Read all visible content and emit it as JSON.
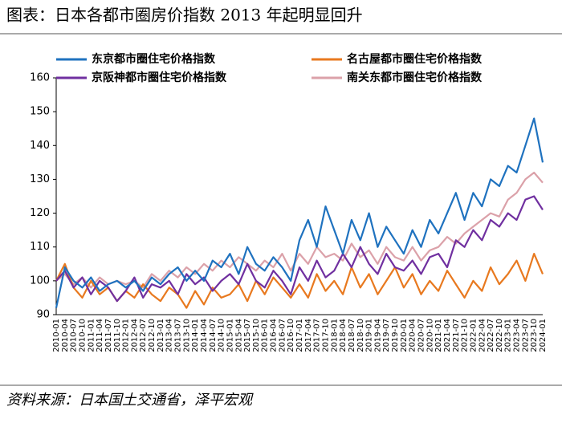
{
  "chart_data": {
    "type": "line",
    "title": "图表：日本各都市圈房价指数 2013 年起明显回升",
    "source": "资料来源：日本国土交通省，泽平宏观",
    "categories": [
      "2010-01",
      "2010-04",
      "2010-07",
      "2010-10",
      "2011-01",
      "2011-04",
      "2011-07",
      "2011-10",
      "2012-01",
      "2012-04",
      "2012-07",
      "2012-10",
      "2013-01",
      "2013-04",
      "2013-07",
      "2013-10",
      "2014-01",
      "2014-04",
      "2014-07",
      "2014-10",
      "2015-01",
      "2015-04",
      "2015-07",
      "2015-10",
      "2016-01",
      "2016-04",
      "2016-07",
      "2016-10",
      "2017-01",
      "2017-04",
      "2017-07",
      "2017-10",
      "2018-01",
      "2018-04",
      "2018-07",
      "2018-10",
      "2019-01",
      "2019-04",
      "2019-07",
      "2019-10",
      "2020-01",
      "2020-04",
      "2020-07",
      "2020-10",
      "2021-01",
      "2021-04",
      "2021-07",
      "2021-10",
      "2022-01",
      "2022-04",
      "2022-07",
      "2022-10",
      "2023-01",
      "2023-04",
      "2023-07",
      "2023-10",
      "2024-01"
    ],
    "series": [
      {
        "name": "东京都市圈住宅价格指数",
        "color": "#1f72bf",
        "values": [
          92,
          104,
          100,
          98,
          101,
          97,
          99,
          100,
          98,
          100,
          97,
          101,
          99,
          102,
          104,
          100,
          103,
          100,
          106,
          104,
          108,
          102,
          110,
          105,
          103,
          107,
          104,
          100,
          112,
          118,
          110,
          122,
          115,
          108,
          118,
          112,
          120,
          110,
          116,
          112,
          108,
          115,
          110,
          118,
          114,
          120,
          126,
          118,
          126,
          122,
          130,
          128,
          134,
          132,
          140,
          148,
          135
        ]
      },
      {
        "name": "名古屋都市圈住宅价格指数",
        "color": "#e8791f",
        "values": [
          100,
          105,
          98,
          95,
          100,
          96,
          98,
          94,
          97,
          95,
          99,
          96,
          94,
          98,
          96,
          92,
          97,
          93,
          98,
          95,
          96,
          99,
          94,
          100,
          96,
          101,
          98,
          95,
          99,
          95,
          102,
          97,
          100,
          96,
          104,
          98,
          102,
          96,
          100,
          104,
          98,
          102,
          96,
          100,
          97,
          103,
          99,
          95,
          100,
          97,
          104,
          99,
          102,
          106,
          100,
          108,
          102
        ]
      },
      {
        "name": "京阪神都市圈住宅价格指数",
        "color": "#7030a0",
        "values": [
          100,
          103,
          98,
          101,
          96,
          100,
          98,
          94,
          97,
          101,
          95,
          99,
          98,
          100,
          96,
          102,
          99,
          101,
          97,
          100,
          102,
          99,
          105,
          100,
          98,
          103,
          100,
          96,
          104,
          100,
          106,
          101,
          103,
          108,
          104,
          110,
          105,
          102,
          108,
          104,
          103,
          106,
          102,
          107,
          108,
          104,
          112,
          110,
          115,
          112,
          118,
          116,
          120,
          118,
          124,
          125,
          121
        ]
      },
      {
        "name": "南关东都市圈住宅价格指数",
        "color": "#dba1a9",
        "values": [
          100,
          102,
          99,
          101,
          98,
          101,
          99,
          100,
          99,
          100,
          98,
          102,
          100,
          103,
          101,
          104,
          102,
          105,
          103,
          106,
          104,
          107,
          105,
          103,
          106,
          104,
          108,
          103,
          108,
          105,
          110,
          107,
          108,
          106,
          111,
          107,
          109,
          105,
          110,
          107,
          106,
          110,
          106,
          109,
          110,
          113,
          111,
          114,
          116,
          118,
          120,
          119,
          124,
          126,
          130,
          132,
          129
        ]
      }
    ],
    "ylim": [
      90,
      160
    ],
    "yticks": [
      90,
      100,
      110,
      120,
      130,
      140,
      150,
      160
    ]
  }
}
